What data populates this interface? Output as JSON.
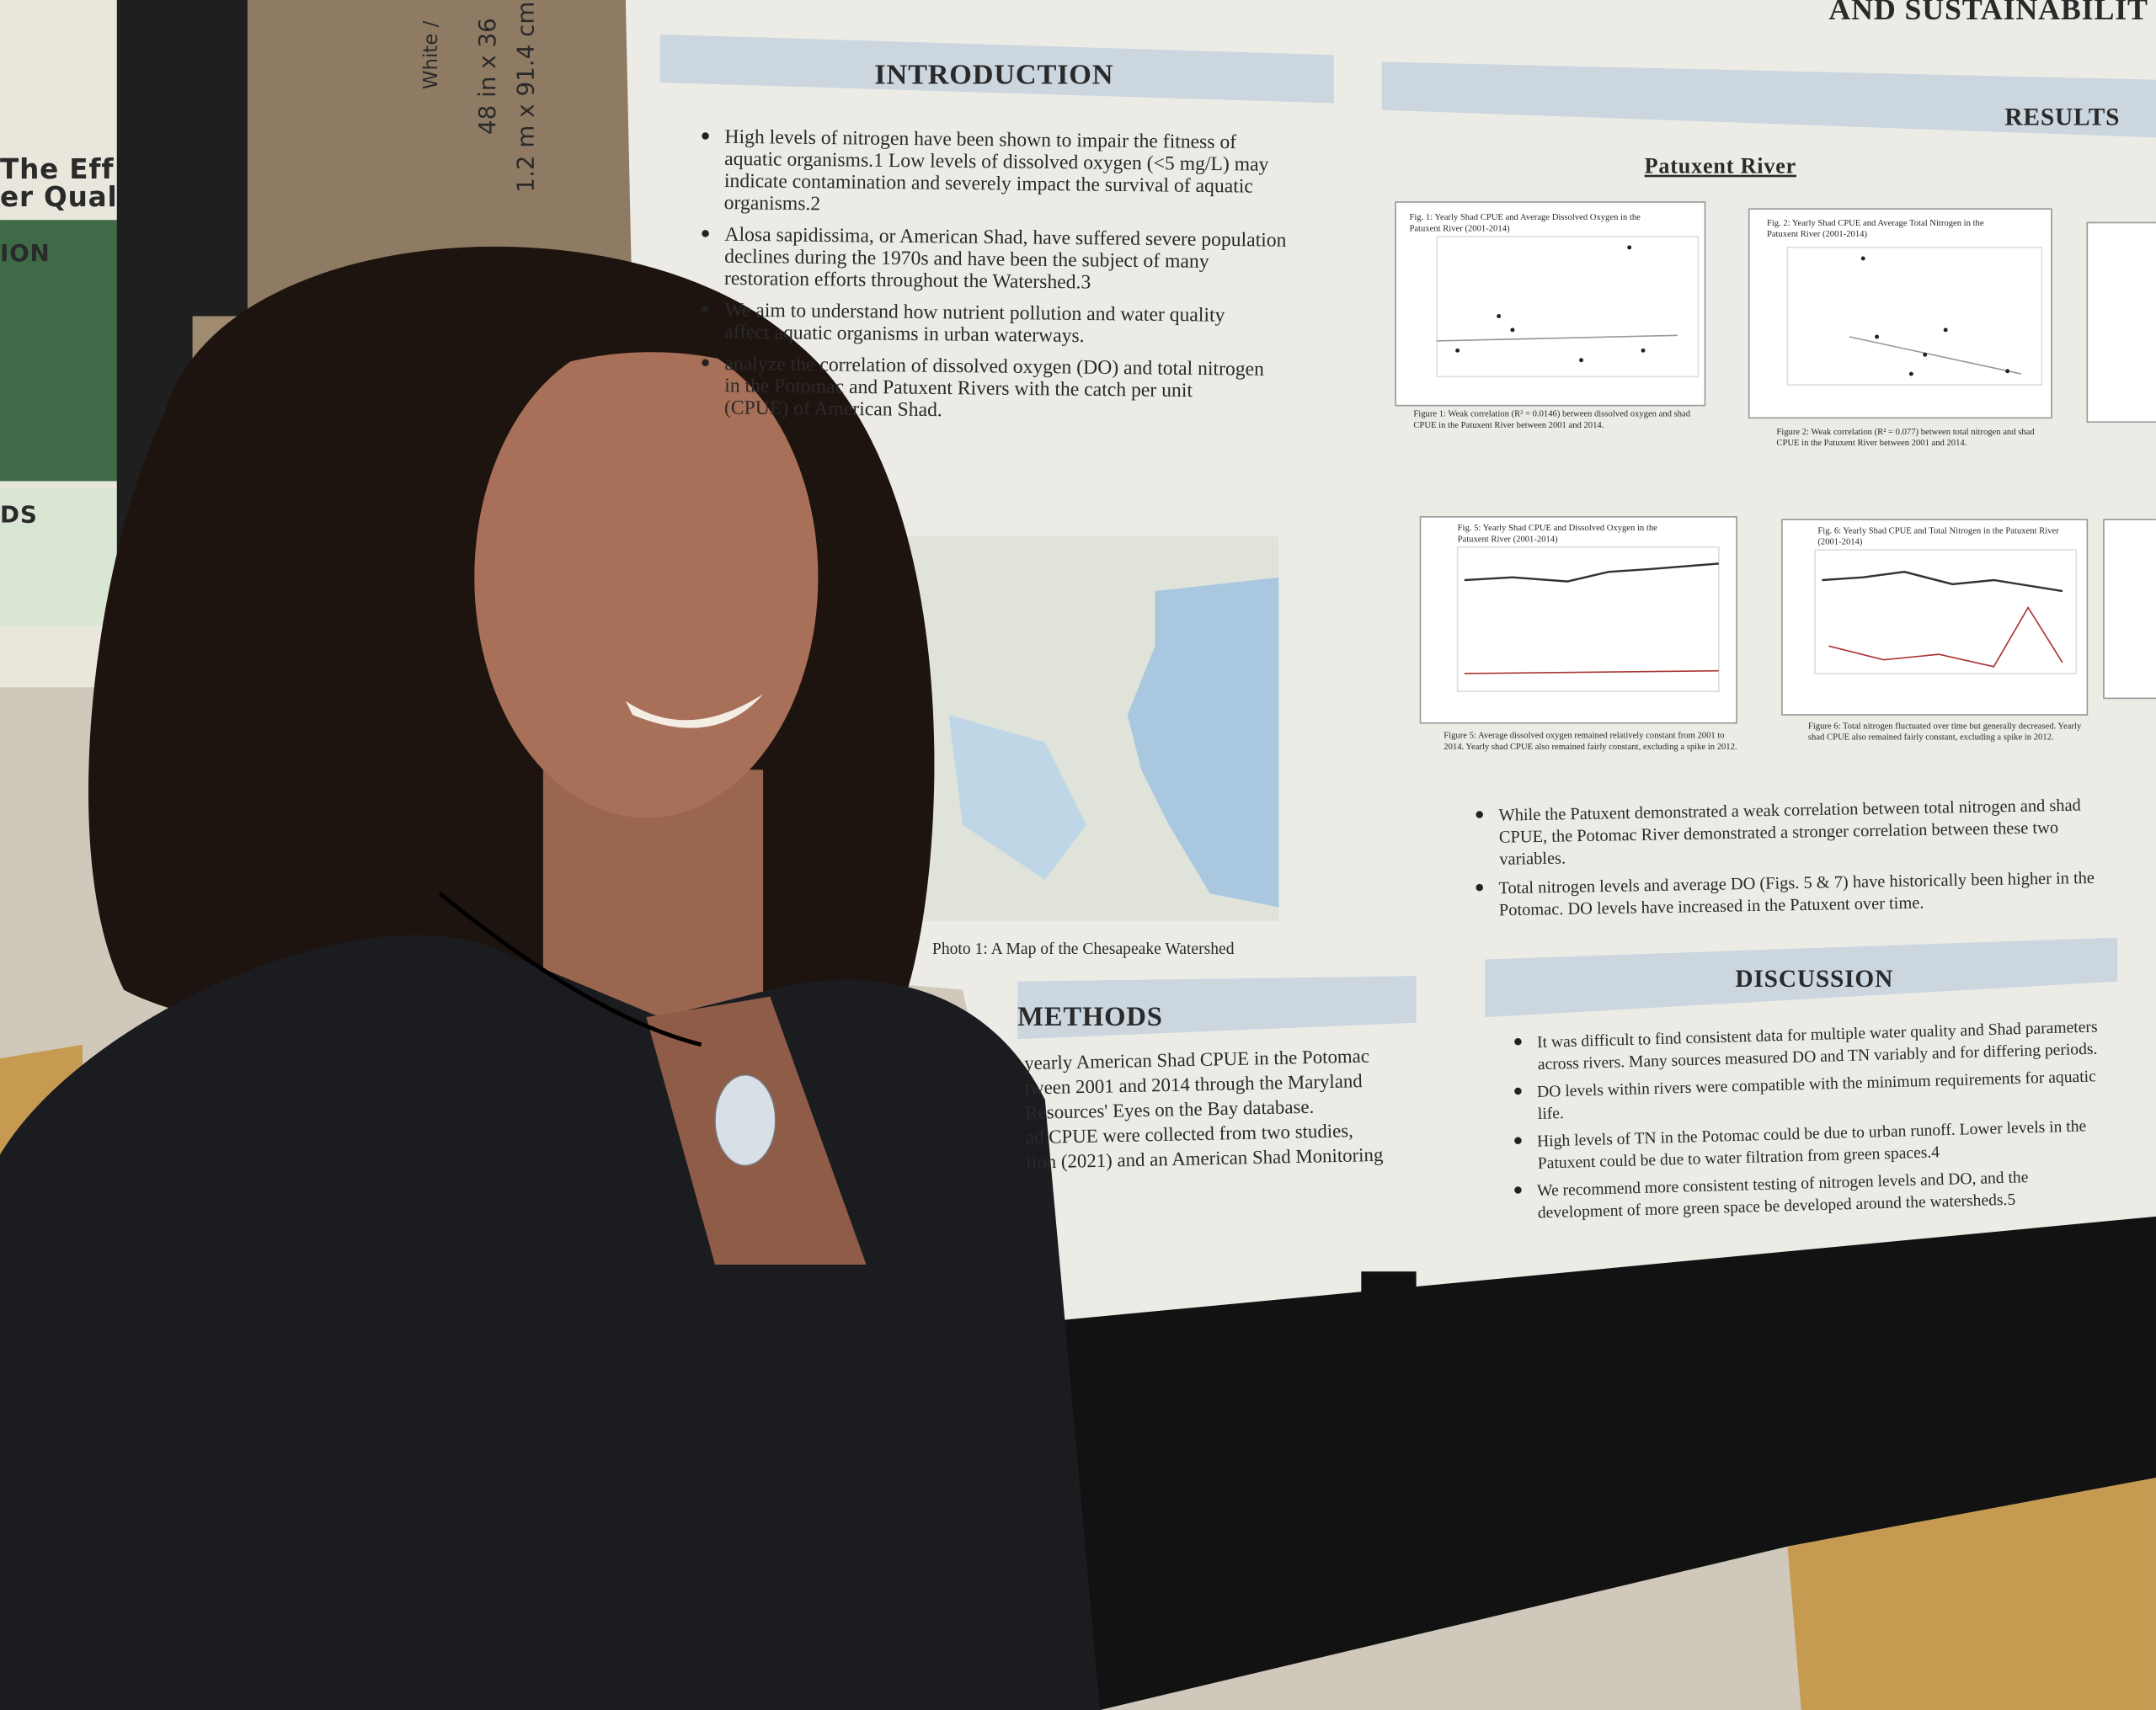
{
  "background": {
    "box_labels": [
      "White /",
      "48 in x 36",
      "1.2 m x 91.4 cm"
    ],
    "left_poster": [
      "The Eff",
      "er Qual",
      "ION",
      "DS"
    ]
  },
  "poster": {
    "title_fragment": "AND SUSTAINABILIT",
    "introduction": {
      "heading": "INTRODUCTION",
      "bullets": [
        [
          "High levels of nitrogen have been shown to impair the fitness of",
          "aquatic organisms.1 Low levels of dissolved oxygen (<5 mg/L) may",
          "indicate contamination and severely impact the survival of aquatic",
          "organisms.2"
        ],
        [
          "Alosa sapidissima, or American Shad, have suffered severe population",
          "declines during the 1970s and have been the subject of many",
          "restoration efforts throughout the Watershed.3"
        ],
        [
          "We aim to understand how nutrient pollution and water quality",
          "affect aquatic organisms in urban waterways."
        ],
        [
          "analyze the correlation of dissolved oxygen (DO) and total nitrogen",
          "in the Potomac and Patuxent Rivers with the catch per unit",
          "(CPUE) of American Shad."
        ]
      ]
    },
    "map_caption": "Photo 1: A Map of the Chesapeake Watershed",
    "methods": {
      "heading": "METHODS",
      "lines": [
        "yearly American Shad CPUE in the Potomac",
        "tween 2001 and 2014 through the Maryland",
        "Resources' Eyes on the Bay database.",
        "ad CPUE were collected from two studies,",
        "tion (2021) and an American Shad Monitoring"
      ]
    },
    "results": {
      "heading": "RESULTS",
      "subheading": "Patuxent River",
      "figures": [
        {
          "title": [
            "Fig. 1: Yearly Shad CPUE and Average Dissolved Oxygen in the",
            "Patuxent River (2001-2014)"
          ],
          "caption": [
            "Figure 1: Weak correlation (R² = 0.0146) between dissolved oxygen and shad",
            "CPUE in the Patuxent River between 2001 and 2014."
          ]
        },
        {
          "title": [
            "Fig. 2: Yearly Shad CPUE and Average Total Nitrogen in the",
            "Patuxent River (2001-2014)"
          ],
          "caption": [
            "Figure 2: Weak correlation (R² = 0.077) between total nitrogen and shad",
            "CPUE in the Patuxent River between 2001 and 2014."
          ]
        },
        {
          "title": [
            "Fig. 5: Yearly Shad CPUE and Dissolved Oxygen in the",
            "Patuxent River (2001-2014)"
          ],
          "caption": [
            "Figure 5: Average dissolved oxygen remained relatively constant from 2001 to",
            "2014. Yearly shad CPUE also remained fairly constant, excluding a spike in 2012."
          ]
        },
        {
          "title": [
            "Fig. 6: Yearly Shad CPUE and Total Nitrogen in the Patuxent River",
            "(2001-2014)"
          ],
          "caption": [
            "Figure 6: Total nitrogen fluctuated over time but generally decreased. Yearly",
            "shad CPUE also remained fairly constant, excluding a spike in 2012."
          ]
        }
      ],
      "bullets": [
        [
          "While the Patuxent demonstrated a weak correlation between total nitrogen and shad",
          "CPUE, the Potomac River demonstrated a stronger correlation between these two",
          "variables."
        ],
        [
          "Total nitrogen levels and average DO (Figs. 5 & 7) have historically been higher in the",
          "Potomac. DO levels have increased in the Patuxent over time."
        ]
      ]
    },
    "discussion": {
      "heading": "DISCUSSION",
      "bullets": [
        [
          "It was difficult to find consistent data for multiple water quality and Shad parameters",
          "across rivers. Many sources measured DO and TN variably and for differing periods."
        ],
        [
          "DO levels within rivers were compatible with the minimum requirements for aquatic",
          "life."
        ],
        [
          "High levels of TN in the Potomac could be due to urban runoff. Lower levels in the",
          "Patuxent could be due to water filtration from green spaces.4"
        ],
        [
          "We recommend more consistent testing of nitrogen levels and DO, and the",
          "development of more green space be developed around the watersheds.5"
        ]
      ]
    }
  }
}
